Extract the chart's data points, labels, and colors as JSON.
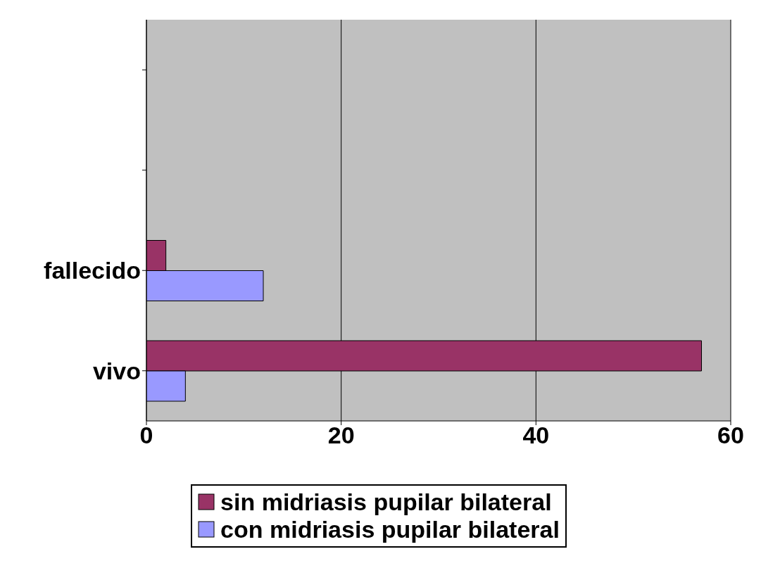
{
  "chart_data": {
    "type": "bar",
    "orientation": "horizontal",
    "categories": [
      null,
      null,
      "fallecido",
      "vivo"
    ],
    "series": [
      {
        "name": "sin midriasis pupilar bilateral",
        "color": "#993366",
        "values": [
          null,
          null,
          2,
          57
        ]
      },
      {
        "name": "con midriasis pupilar bilateral",
        "color": "#9999ff",
        "values": [
          null,
          null,
          12,
          4
        ]
      }
    ],
    "xlim": [
      0,
      60
    ],
    "xticks": [
      0,
      20,
      40,
      60
    ],
    "grid": "x",
    "legend": "bottom"
  }
}
